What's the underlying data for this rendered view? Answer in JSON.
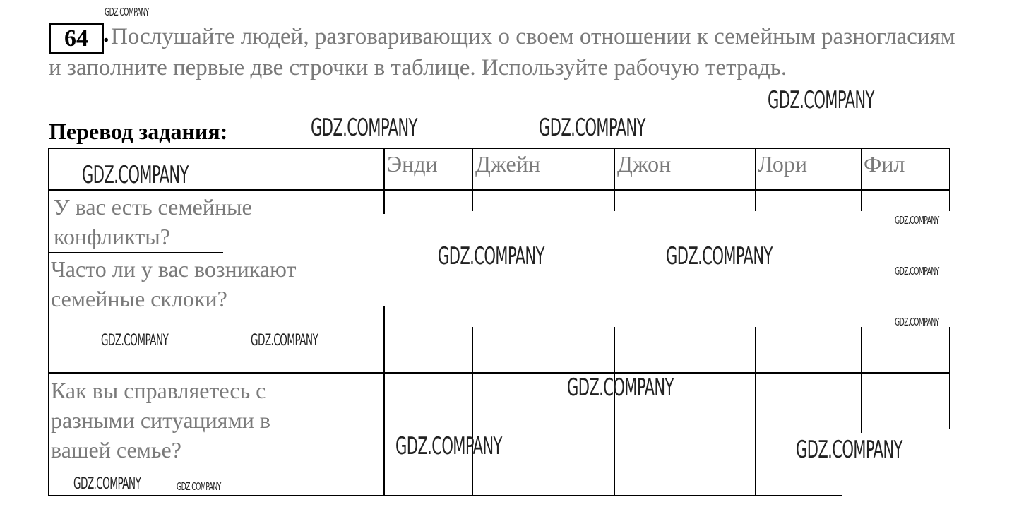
{
  "exercise": {
    "number": "64",
    "dot": ".",
    "instruction": "Послушайте людей, разговаривающих о своем отношении к семейным разногласиям и заполните первые две строчки в таблице. Используйте рабочую тетрадь.",
    "translation_heading": "Перевод задания:"
  },
  "table": {
    "columns": [
      "Энди",
      "Джейн",
      "Джон",
      "Лори",
      "Фил"
    ],
    "rows": [
      "У вас есть семейные конфликты?",
      "Часто ли у вас возникают семейные склоки?",
      "Как вы справляетесь с разными ситуациями в вашей семье?"
    ]
  },
  "watermark": "GDZ.COMPANY",
  "colors": {
    "task_text": "#7a7a7a",
    "lines": "#000000"
  }
}
